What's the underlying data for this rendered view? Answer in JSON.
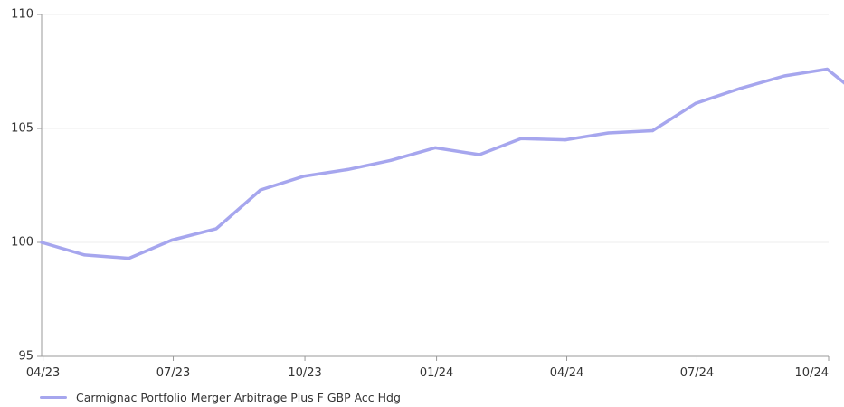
{
  "chart_data": {
    "type": "line",
    "x": [
      "2023-03-31",
      "2023-04-30",
      "2023-05-31",
      "2023-06-30",
      "2023-07-31",
      "2023-08-31",
      "2023-09-30",
      "2023-10-31",
      "2023-11-30",
      "2023-12-31",
      "2024-01-31",
      "2024-02-29",
      "2024-03-31",
      "2024-04-30",
      "2024-05-31",
      "2024-06-30",
      "2024-07-31",
      "2024-08-31",
      "2024-09-30",
      "2024-10-15"
    ],
    "xticks": [
      "04/23",
      "07/23",
      "10/23",
      "01/24",
      "04/24",
      "07/24",
      "10/24"
    ],
    "xtick_dates": [
      "2023-04-01",
      "2023-07-01",
      "2023-10-01",
      "2024-01-01",
      "2024-04-01",
      "2024-07-01",
      "2024-10-01"
    ],
    "xlim": [
      "2023-03-31",
      "2024-10-01"
    ],
    "yticks": [
      95,
      100,
      105,
      110
    ],
    "ylim": [
      95,
      110
    ],
    "series": [
      {
        "name": "Carmignac Portfolio Merger Arbitrage Plus F GBP Acc Hdg",
        "color": "#a6a6ee",
        "values": [
          100.0,
          99.45,
          99.3,
          100.1,
          100.6,
          102.3,
          102.9,
          103.2,
          103.6,
          104.15,
          103.85,
          104.55,
          104.5,
          104.8,
          104.9,
          106.1,
          106.75,
          107.3,
          107.6,
          106.85
        ]
      }
    ],
    "grid": true,
    "legend_position": "bottom-left",
    "title": "",
    "xlabel": "",
    "ylabel": ""
  }
}
